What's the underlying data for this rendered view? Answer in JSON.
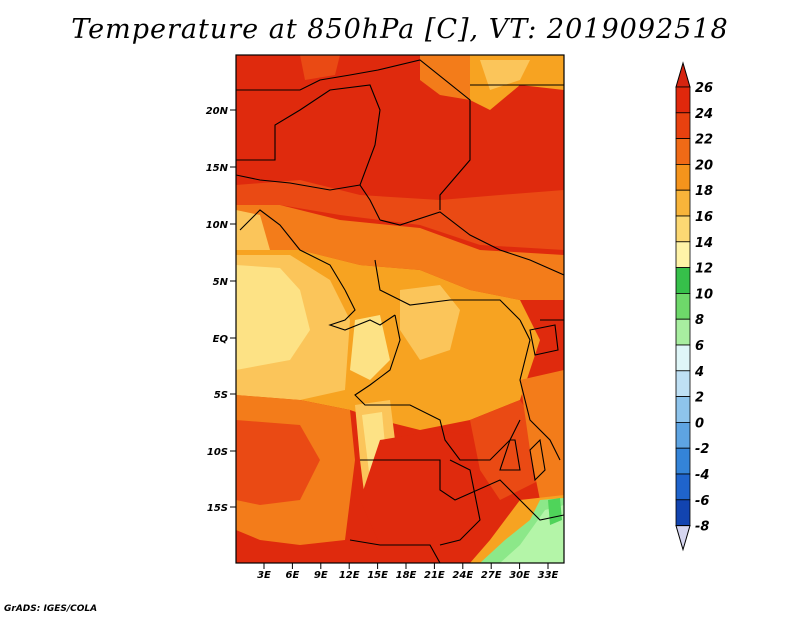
{
  "title": "Temperature at 850hPa [C], VT: 2019092518",
  "credit": "GrADS: IGES/COLA",
  "map": {
    "lon_ticks": [
      "3E",
      "6E",
      "9E",
      "12E",
      "15E",
      "18E",
      "21E",
      "24E",
      "27E",
      "30E",
      "33E"
    ],
    "lat_ticks": [
      "20N",
      "15N",
      "10N",
      "5N",
      "EQ",
      "5S",
      "10S",
      "15S"
    ]
  },
  "colorbar": {
    "levels": [
      "26",
      "24",
      "22",
      "20",
      "18",
      "16",
      "14",
      "12",
      "10",
      "8",
      "6",
      "4",
      "2",
      "0",
      "-2",
      "-4",
      "-6",
      "-8"
    ],
    "colors": [
      "#f5f5f5",
      "#e8f4fc",
      "#c8e4f6",
      "#a6d2f0",
      "#7fb8e8",
      "#5a9cdf",
      "#3b80d6",
      "#2264c8",
      "#1446b0",
      "#0a2e96",
      "#05147a",
      "#b4f5a8",
      "#8ce889",
      "#4fd45a",
      "#2fb83a",
      "#fff3a8",
      "#fde285",
      "#fbc55a",
      "#f7a321",
      "#f37c1a",
      "#ea4a14",
      "#df2a0d"
    ],
    "cbar_colors_top_to_bottom": [
      "#e0280c",
      "#e8410f",
      "#f06a16",
      "#f5941c",
      "#f8b43a",
      "#fcd873",
      "#fff3a8",
      "#36c04a",
      "#6ed86a",
      "#a8eea0",
      "#dff6f8",
      "#bfe0f4",
      "#8ec4ec",
      "#5ea4e2",
      "#3484d8",
      "#1f64cc",
      "#1244b0",
      "#0a1e8a"
    ],
    "cbar_top_color": "#d62410",
    "cbar_bottom_color": "#d6d6f0"
  }
}
